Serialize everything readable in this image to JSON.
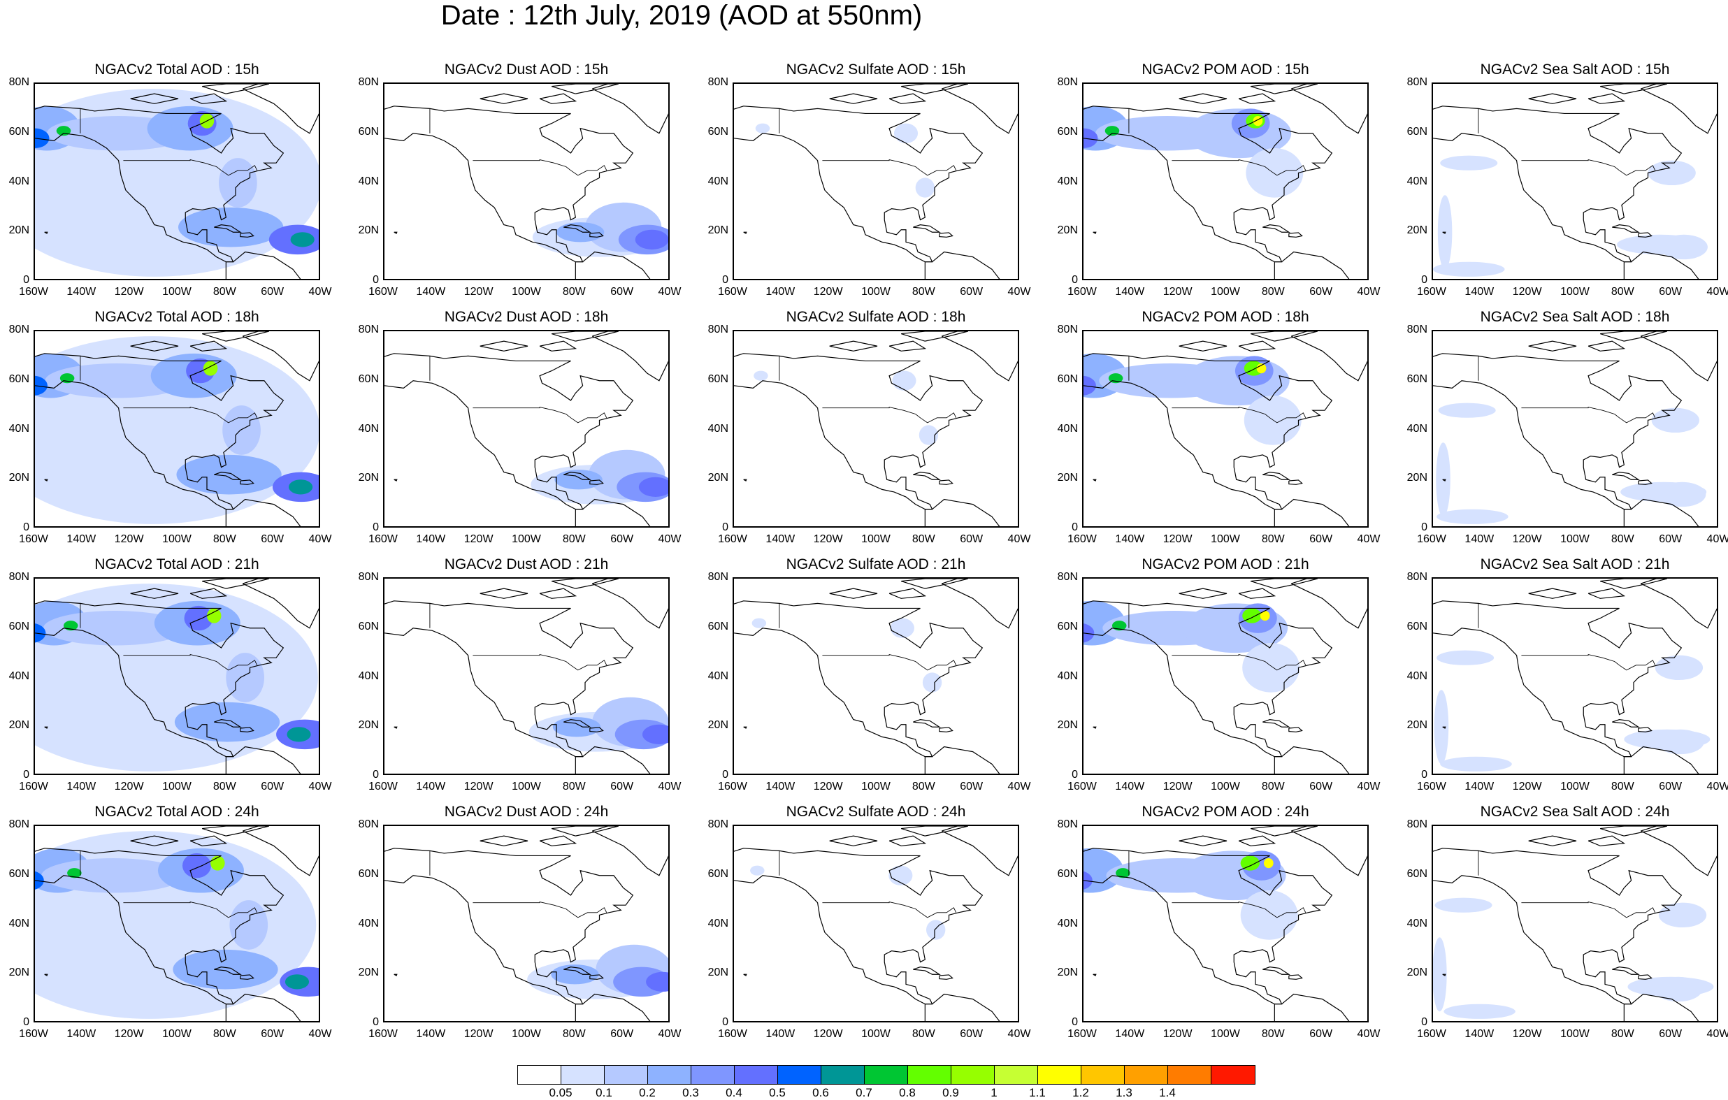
{
  "title": "Date : 12th July, 2019 (AOD at 550nm)",
  "rows": [
    "15h",
    "18h",
    "21h",
    "24h"
  ],
  "panels": [
    [
      "NGACv2 Total AOD : 15h",
      "NGACv2 Dust AOD : 15h",
      "NGACv2 Sulfate AOD : 15h",
      "NGACv2 POM AOD : 15h",
      "NGACv2 Sea Salt AOD : 15h"
    ],
    [
      "NGACv2 Total AOD : 18h",
      "NGACv2 Dust AOD : 18h",
      "NGACv2 Sulfate AOD : 18h",
      "NGACv2 POM AOD : 18h",
      "NGACv2 Sea Salt AOD : 18h"
    ],
    [
      "NGACv2 Total AOD : 21h",
      "NGACv2 Dust AOD : 21h",
      "NGACv2 Sulfate AOD : 21h",
      "NGACv2 POM AOD : 21h",
      "NGACv2 Sea Salt AOD : 21h"
    ],
    [
      "NGACv2 Total AOD : 24h",
      "NGACv2 Dust AOD : 24h",
      "NGACv2 Sulfate AOD : 24h",
      "NGACv2 POM AOD : 24h",
      "NGACv2 Sea Salt  AOD : 24h"
    ]
  ],
  "axes": {
    "lat_ticks": [
      "80N",
      "60N",
      "40N",
      "20N",
      "0"
    ],
    "lon_ticks": [
      "160W",
      "140W",
      "120W",
      "100W",
      "80W",
      "60W",
      "40W"
    ]
  },
  "colorbar": {
    "colors": [
      "#ffffff",
      "#d6e2ff",
      "#b5c9ff",
      "#8eb2ff",
      "#7f96ff",
      "#6370ff",
      "#0063ff",
      "#009696",
      "#00c633",
      "#63ff00",
      "#96ff00",
      "#c6ff33",
      "#ffff00",
      "#ffc600",
      "#ffa000",
      "#ff7c00",
      "#ff1900"
    ],
    "labels": [
      "0.05",
      "0.1",
      "0.2",
      "0.3",
      "0.4",
      "0.5",
      "0.6",
      "0.7",
      "0.8",
      "0.9",
      "1",
      "1.1",
      "1.2",
      "1.3",
      "1.4"
    ]
  }
}
